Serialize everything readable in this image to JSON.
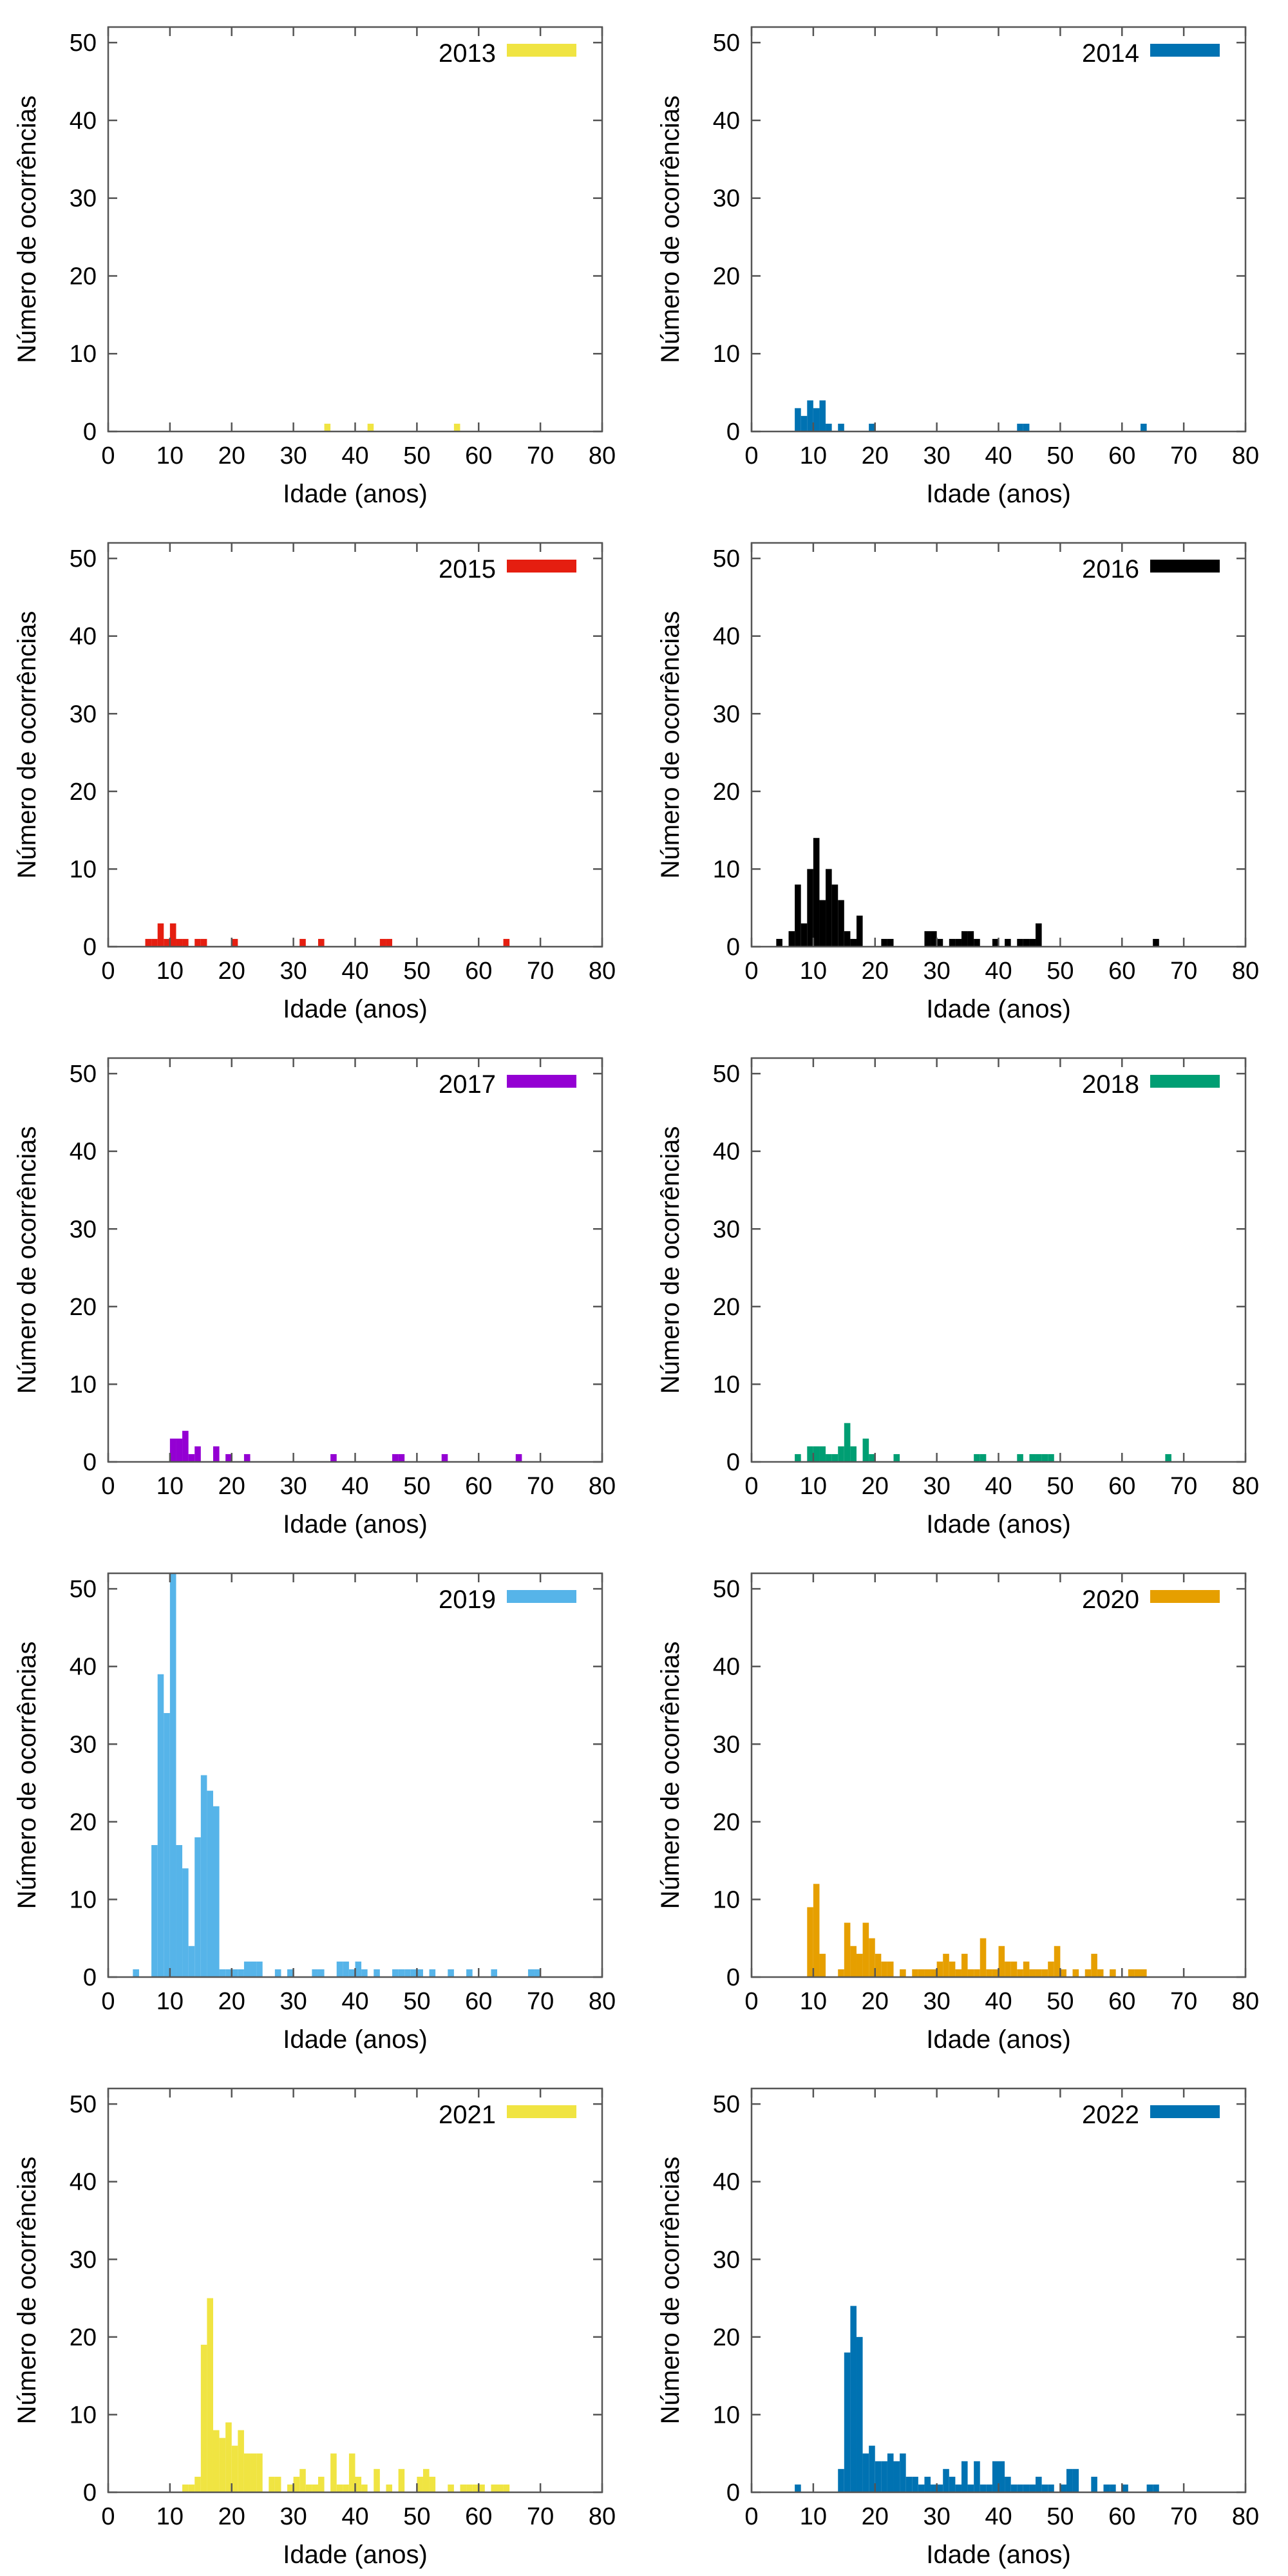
{
  "chart_data": [
    {
      "type": "bar",
      "series": [
        {
          "name": "2013",
          "color": "#f0e442",
          "x": [
            35.5,
            42.5,
            56.5
          ],
          "values": [
            1,
            1,
            1
          ]
        }
      ],
      "xlabel": "Idade (anos)",
      "ylabel": "Número de ocorrências",
      "xlim": [
        0,
        80
      ],
      "ylim": [
        0,
        52
      ],
      "xticks": [
        0,
        10,
        20,
        30,
        40,
        50,
        60,
        70,
        80
      ],
      "yticks": [
        0,
        10,
        20,
        30,
        40,
        50
      ],
      "bin_width": 1,
      "legend": "top-right",
      "grid": false
    },
    {
      "type": "bar",
      "series": [
        {
          "name": "2014",
          "color": "#0072b2",
          "x": [
            7.5,
            8.5,
            9.5,
            10.5,
            11.5,
            12.5,
            14.5,
            19.5,
            43.5,
            44.5,
            63.5
          ],
          "values": [
            3,
            2,
            4,
            3,
            4,
            1,
            1,
            1,
            1,
            1,
            1
          ]
        }
      ],
      "xlabel": "Idade (anos)",
      "ylabel": "Número de ocorrências",
      "xlim": [
        0,
        80
      ],
      "ylim": [
        0,
        52
      ],
      "xticks": [
        0,
        10,
        20,
        30,
        40,
        50,
        60,
        70,
        80
      ],
      "yticks": [
        0,
        10,
        20,
        30,
        40,
        50
      ],
      "bin_width": 1,
      "legend": "top-right",
      "grid": false
    },
    {
      "type": "bar",
      "series": [
        {
          "name": "2015",
          "color": "#e51e10",
          "x": [
            6.5,
            7.5,
            8.5,
            9.5,
            10.5,
            11.5,
            12.5,
            14.5,
            15.5,
            20.5,
            31.5,
            34.5,
            44.5,
            45.5,
            64.5
          ],
          "values": [
            1,
            1,
            3,
            1,
            3,
            1,
            1,
            1,
            1,
            1,
            1,
            1,
            1,
            1,
            1
          ]
        }
      ],
      "xlabel": "Idade (anos)",
      "ylabel": "Número de ocorrências",
      "xlim": [
        0,
        80
      ],
      "ylim": [
        0,
        52
      ],
      "xticks": [
        0,
        10,
        20,
        30,
        40,
        50,
        60,
        70,
        80
      ],
      "yticks": [
        0,
        10,
        20,
        30,
        40,
        50
      ],
      "bin_width": 1,
      "legend": "top-right",
      "grid": false
    },
    {
      "type": "bar",
      "series": [
        {
          "name": "2016",
          "color": "#000000",
          "x": [
            4.5,
            6.5,
            7.5,
            8.5,
            9.5,
            10.5,
            11.5,
            12.5,
            13.5,
            14.5,
            15.5,
            16.5,
            17.5,
            21.5,
            22.5,
            28.5,
            29.5,
            30.5,
            32.5,
            33.5,
            34.5,
            35.5,
            36.5,
            39.5,
            41.5,
            43.5,
            44.5,
            45.5,
            46.5,
            65.5
          ],
          "values": [
            1,
            2,
            8,
            3,
            10,
            14,
            6,
            10,
            8,
            6,
            2,
            1,
            4,
            1,
            1,
            2,
            2,
            1,
            1,
            1,
            2,
            2,
            1,
            1,
            1,
            1,
            1,
            1,
            3,
            1
          ]
        }
      ],
      "xlabel": "Idade (anos)",
      "ylabel": "Número de ocorrências",
      "xlim": [
        0,
        80
      ],
      "ylim": [
        0,
        52
      ],
      "xticks": [
        0,
        10,
        20,
        30,
        40,
        50,
        60,
        70,
        80
      ],
      "yticks": [
        0,
        10,
        20,
        30,
        40,
        50
      ],
      "bin_width": 1,
      "legend": "top-right",
      "grid": false
    },
    {
      "type": "bar",
      "series": [
        {
          "name": "2017",
          "color": "#9400d3",
          "x": [
            10.5,
            11.5,
            12.5,
            13.5,
            14.5,
            17.5,
            19.5,
            22.5,
            36.5,
            46.5,
            47.5,
            54.5,
            66.5
          ],
          "values": [
            3,
            3,
            4,
            1,
            2,
            2,
            1,
            1,
            1,
            1,
            1,
            1,
            1
          ]
        }
      ],
      "xlabel": "Idade (anos)",
      "ylabel": "Número de ocorrências",
      "xlim": [
        0,
        80
      ],
      "ylim": [
        0,
        52
      ],
      "xticks": [
        0,
        10,
        20,
        30,
        40,
        50,
        60,
        70,
        80
      ],
      "yticks": [
        0,
        10,
        20,
        30,
        40,
        50
      ],
      "bin_width": 1,
      "legend": "top-right",
      "grid": false
    },
    {
      "type": "bar",
      "series": [
        {
          "name": "2018",
          "color": "#009e73",
          "x": [
            7.5,
            9.5,
            10.5,
            11.5,
            12.5,
            13.5,
            14.5,
            15.5,
            16.5,
            18.5,
            19.5,
            23.5,
            36.5,
            37.5,
            43.5,
            45.5,
            46.5,
            47.5,
            48.5,
            67.5
          ],
          "values": [
            1,
            2,
            2,
            2,
            1,
            1,
            2,
            5,
            2,
            3,
            1,
            1,
            1,
            1,
            1,
            1,
            1,
            1,
            1,
            1
          ]
        }
      ],
      "xlabel": "Idade (anos)",
      "ylabel": "Número de ocorrências",
      "xlim": [
        0,
        80
      ],
      "ylim": [
        0,
        52
      ],
      "xticks": [
        0,
        10,
        20,
        30,
        40,
        50,
        60,
        70,
        80
      ],
      "yticks": [
        0,
        10,
        20,
        30,
        40,
        50
      ],
      "bin_width": 1,
      "legend": "top-right",
      "grid": false
    },
    {
      "type": "bar",
      "series": [
        {
          "name": "2019",
          "color": "#56b4e9",
          "x": [
            4.5,
            7.5,
            8.5,
            9.5,
            10.5,
            11.5,
            12.5,
            13.5,
            14.5,
            15.5,
            16.5,
            17.5,
            18.5,
            19.5,
            20.5,
            21.5,
            22.5,
            23.5,
            24.5,
            27.5,
            29.5,
            33.5,
            34.5,
            37.5,
            38.5,
            39.5,
            40.5,
            41.5,
            43.5,
            46.5,
            47.5,
            48.5,
            49.5,
            50.5,
            52.5,
            55.5,
            58.5,
            62.5,
            68.5,
            69.5
          ],
          "values": [
            1,
            17,
            39,
            34,
            52,
            17,
            14,
            4,
            18,
            26,
            24,
            22,
            1,
            1,
            1,
            1,
            2,
            2,
            2,
            1,
            1,
            1,
            1,
            2,
            2,
            1,
            2,
            1,
            1,
            1,
            1,
            1,
            1,
            1,
            1,
            1,
            1,
            1,
            1,
            1
          ]
        }
      ],
      "xlabel": "Idade (anos)",
      "ylabel": "Número de ocorrências",
      "xlim": [
        0,
        80
      ],
      "ylim": [
        0,
        52
      ],
      "xticks": [
        0,
        10,
        20,
        30,
        40,
        50,
        60,
        70,
        80
      ],
      "yticks": [
        0,
        10,
        20,
        30,
        40,
        50
      ],
      "bin_width": 1,
      "legend": "top-right",
      "grid": false
    },
    {
      "type": "bar",
      "series": [
        {
          "name": "2020",
          "color": "#e69f00",
          "x": [
            9.5,
            10.5,
            11.5,
            14.5,
            15.5,
            16.5,
            17.5,
            18.5,
            19.5,
            20.5,
            21.5,
            22.5,
            24.5,
            26.5,
            27.5,
            28.5,
            29.5,
            30.5,
            31.5,
            32.5,
            33.5,
            34.5,
            35.5,
            36.5,
            37.5,
            38.5,
            39.5,
            40.5,
            41.5,
            42.5,
            43.5,
            44.5,
            45.5,
            46.5,
            47.5,
            48.5,
            49.5,
            50.5,
            52.5,
            54.5,
            55.5,
            56.5,
            58.5,
            61.5,
            62.5,
            63.5
          ],
          "values": [
            9,
            12,
            3,
            1,
            7,
            4,
            3,
            7,
            5,
            3,
            2,
            2,
            1,
            1,
            1,
            1,
            1,
            2,
            3,
            2,
            1,
            3,
            1,
            1,
            5,
            1,
            1,
            4,
            2,
            2,
            1,
            2,
            1,
            1,
            1,
            2,
            4,
            1,
            1,
            1,
            3,
            1,
            1,
            1,
            1,
            1
          ]
        }
      ],
      "xlabel": "Idade (anos)",
      "ylabel": "Número de ocorrências",
      "xlim": [
        0,
        80
      ],
      "ylim": [
        0,
        52
      ],
      "xticks": [
        0,
        10,
        20,
        30,
        40,
        50,
        60,
        70,
        80
      ],
      "yticks": [
        0,
        10,
        20,
        30,
        40,
        50
      ],
      "bin_width": 1,
      "legend": "top-right",
      "grid": false
    },
    {
      "type": "bar",
      "series": [
        {
          "name": "2021",
          "color": "#f0e442",
          "x": [
            12.5,
            13.5,
            14.5,
            15.5,
            16.5,
            17.5,
            18.5,
            19.5,
            20.5,
            21.5,
            22.5,
            23.5,
            24.5,
            26.5,
            27.5,
            29.5,
            30.5,
            31.5,
            32.5,
            33.5,
            34.5,
            36.5,
            37.5,
            38.5,
            39.5,
            40.5,
            41.5,
            43.5,
            45.5,
            47.5,
            50.5,
            51.5,
            52.5,
            55.5,
            57.5,
            58.5,
            59.5,
            60.5,
            62.5,
            63.5,
            64.5
          ],
          "values": [
            1,
            1,
            2,
            19,
            25,
            8,
            7,
            9,
            6,
            8,
            5,
            5,
            5,
            2,
            2,
            1,
            2,
            3,
            1,
            1,
            2,
            5,
            1,
            1,
            5,
            2,
            1,
            3,
            1,
            3,
            2,
            3,
            2,
            1,
            1,
            1,
            1,
            1,
            1,
            1,
            1
          ]
        }
      ],
      "xlabel": "Idade (anos)",
      "ylabel": "Número de ocorrências",
      "xlim": [
        0,
        80
      ],
      "ylim": [
        0,
        52
      ],
      "xticks": [
        0,
        10,
        20,
        30,
        40,
        50,
        60,
        70,
        80
      ],
      "yticks": [
        0,
        10,
        20,
        30,
        40,
        50
      ],
      "bin_width": 1,
      "legend": "top-right",
      "grid": false
    },
    {
      "type": "bar",
      "series": [
        {
          "name": "2022",
          "color": "#0072b2",
          "x": [
            7.5,
            14.5,
            15.5,
            16.5,
            17.5,
            18.5,
            19.5,
            20.5,
            21.5,
            22.5,
            23.5,
            24.5,
            25.5,
            26.5,
            27.5,
            28.5,
            29.5,
            30.5,
            31.5,
            32.5,
            33.5,
            34.5,
            35.5,
            36.5,
            37.5,
            38.5,
            39.5,
            40.5,
            41.5,
            42.5,
            43.5,
            44.5,
            45.5,
            46.5,
            47.5,
            48.5,
            50.5,
            51.5,
            52.5,
            55.5,
            57.5,
            58.5,
            60.5,
            64.5,
            65.5
          ],
          "values": [
            1,
            3,
            18,
            24,
            20,
            5,
            6,
            4,
            4,
            5,
            4,
            5,
            2,
            2,
            1,
            2,
            1,
            1,
            3,
            2,
            1,
            4,
            1,
            4,
            1,
            1,
            4,
            4,
            2,
            1,
            1,
            1,
            1,
            2,
            1,
            1,
            1,
            3,
            3,
            2,
            1,
            1,
            1,
            1,
            1
          ]
        }
      ],
      "xlabel": "Idade (anos)",
      "ylabel": "Número de ocorrências",
      "xlim": [
        0,
        80
      ],
      "ylim": [
        0,
        52
      ],
      "xticks": [
        0,
        10,
        20,
        30,
        40,
        50,
        60,
        70,
        80
      ],
      "yticks": [
        0,
        10,
        20,
        30,
        40,
        50
      ],
      "bin_width": 1,
      "legend": "top-right",
      "grid": false
    }
  ]
}
